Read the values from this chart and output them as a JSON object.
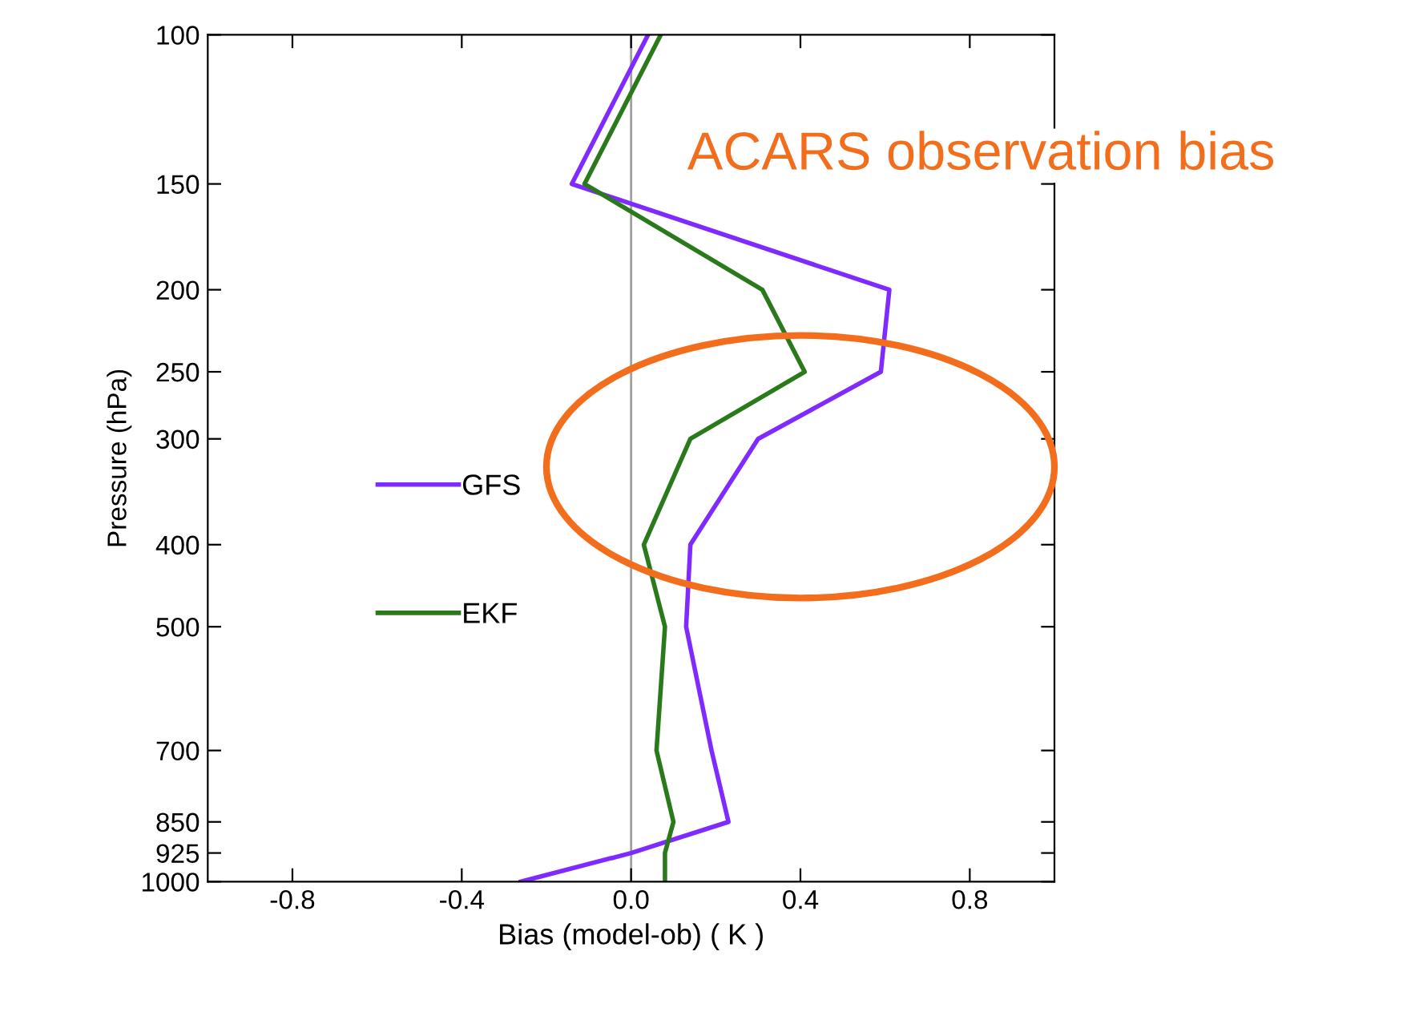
{
  "chart_data": {
    "type": "line",
    "xlabel": "Bias (model-ob) ( K )",
    "ylabel": "Pressure (hPa)",
    "annotations": [
      "ACARS observation bias"
    ],
    "x": [
      100,
      150,
      200,
      250,
      300,
      400,
      500,
      700,
      850,
      925,
      1000
    ],
    "series": [
      {
        "name": "GFS",
        "color": "#7f2bff",
        "values": [
          0.04,
          -0.14,
          0.61,
          0.59,
          0.3,
          0.14,
          0.13,
          0.19,
          0.23,
          0.0,
          -0.26
        ]
      },
      {
        "name": "EKF",
        "color": "#2a7a1c",
        "values": [
          0.07,
          -0.11,
          0.31,
          0.41,
          0.14,
          0.03,
          0.08,
          0.06,
          0.1,
          0.08,
          0.08
        ]
      }
    ],
    "orientation": "horizontal",
    "log": "y",
    "xlim": [
      -1,
      1
    ],
    "xticks": [
      {
        "value": -0.8,
        "label": "-0.8"
      },
      {
        "value": -0.4,
        "label": "-0.4"
      },
      {
        "value": 0.0,
        "label": "0.0"
      },
      0.4,
      0.8
    ],
    "ylim": [
      1000,
      100
    ],
    "yticks": [
      100,
      150,
      200,
      250,
      300,
      400,
      500,
      700,
      850,
      925,
      1000
    ],
    "ref_lines": [
      {
        "axis": "x",
        "value": 0,
        "color": "#a0a0a0"
      }
    ],
    "legend": "left",
    "grid": false,
    "marker": "none",
    "line_style": "solid"
  }
}
